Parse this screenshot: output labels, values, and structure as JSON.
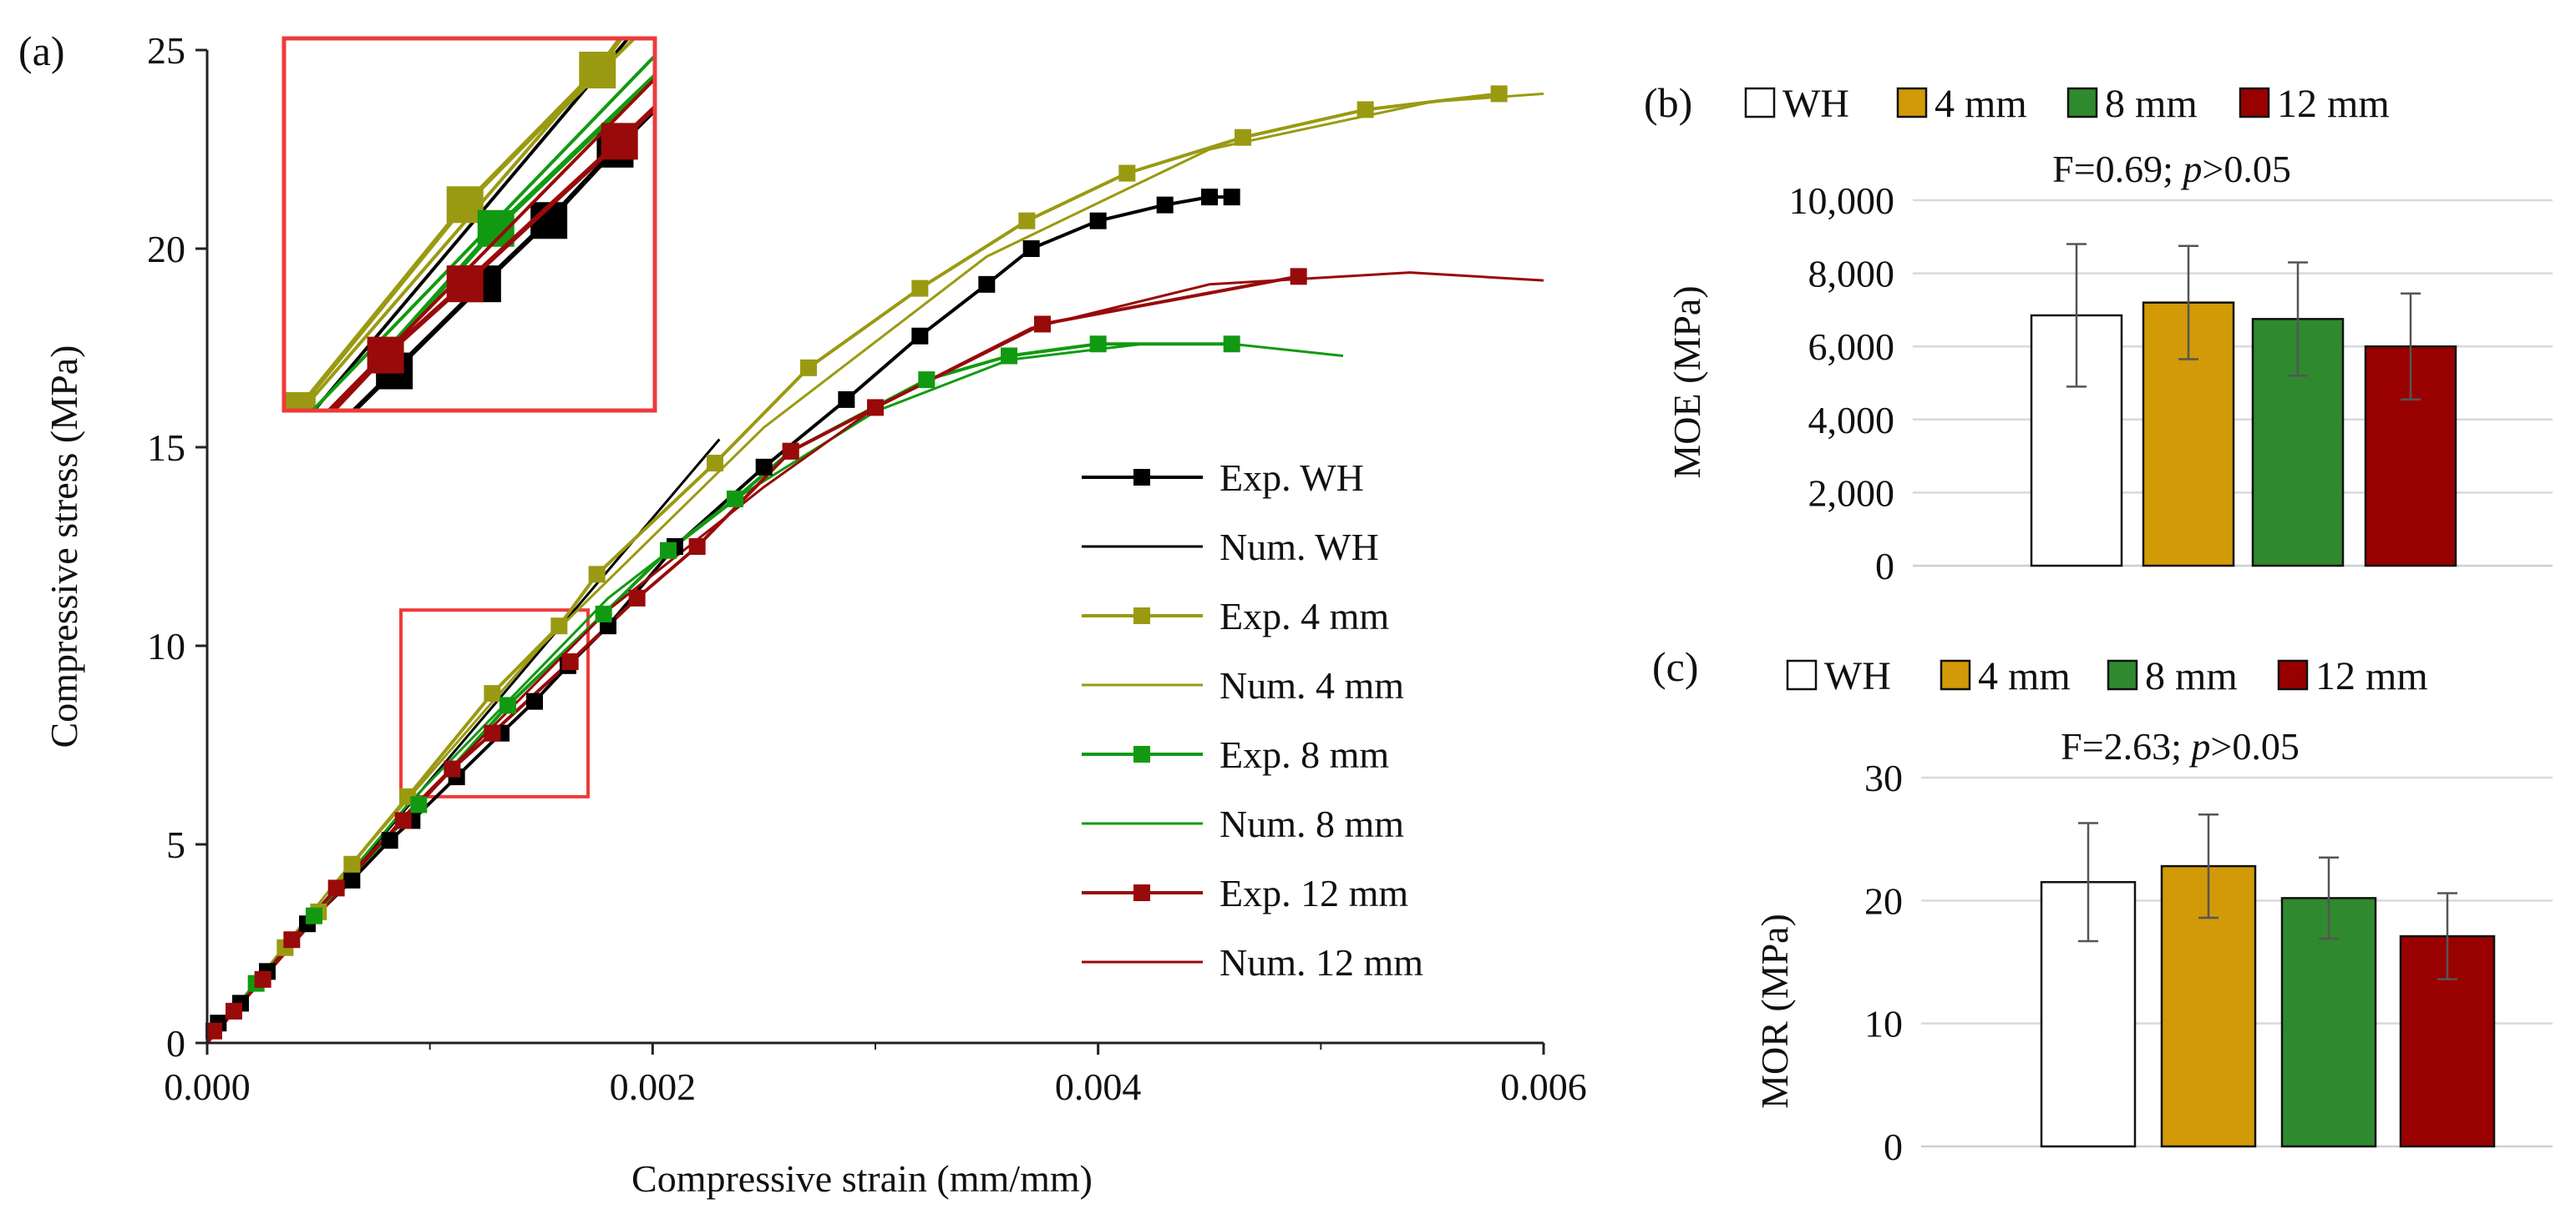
{
  "figure_labels": {
    "a": "(a)",
    "b": "(b)",
    "c": "(c)"
  },
  "colors": {
    "wh": "#000000",
    "wh_fill": "#ffffff",
    "mm4": "#9a9a12",
    "mm4_bar": "#d29a06",
    "mm8": "#119a11",
    "mm8_bar": "#2f8a2f",
    "mm12": "#990a0a",
    "mm12_bar": "#990000",
    "zoom_box": "#ee3b3b",
    "grid": "#d9d9d9",
    "axis": "#222222",
    "error": "#555555"
  },
  "chart_data": [
    {
      "id": "a",
      "type": "line",
      "title": "",
      "xlabel": "Compressive strain (mm/mm)",
      "ylabel": "Compressive stress (MPa)",
      "xlim": [
        0,
        0.006
      ],
      "ylim": [
        0,
        25
      ],
      "xticks": [
        0,
        0.002,
        0.004,
        0.006
      ],
      "xtick_labels": [
        "0.000",
        "0.002",
        "0.004",
        "0.006"
      ],
      "yticks": [
        0,
        5,
        10,
        15,
        20,
        25
      ],
      "ytick_labels": [
        "0",
        "5",
        "10",
        "15",
        "20",
        "25"
      ],
      "legend_position": "bottom-right",
      "zoom_region": {
        "x": [
          0.00087,
          0.00171
        ],
        "y": [
          6.2,
          10.9
        ]
      },
      "series": [
        {
          "name": "Exp. WH",
          "kind": "exp",
          "color_key": "wh",
          "x": [
            0,
            5e-05,
            0.00015,
            0.00027,
            0.00045,
            0.00065,
            0.00082,
            0.00092,
            0.00112,
            0.00132,
            0.00147,
            0.00162,
            0.0018,
            0.0021,
            0.0025,
            0.00287,
            0.0032,
            0.0035,
            0.0037,
            0.004,
            0.0043,
            0.0045,
            0.0046
          ],
          "y": [
            0,
            0.5,
            1.0,
            1.8,
            3.0,
            4.1,
            5.1,
            5.6,
            6.7,
            7.8,
            8.6,
            9.5,
            10.5,
            12.5,
            14.5,
            16.2,
            17.8,
            19.1,
            20.0,
            20.7,
            21.1,
            21.3,
            21.3
          ]
        },
        {
          "name": "Num. WH",
          "kind": "num",
          "color_key": "wh",
          "x": [
            0,
            0.0023
          ],
          "y": [
            0,
            15.2
          ]
        },
        {
          "name": "Exp. 4 mm",
          "kind": "exp",
          "color_key": "mm4",
          "x": [
            0,
            0.00035,
            0.0005,
            0.00065,
            0.0009,
            0.00128,
            0.00158,
            0.00175,
            0.00228,
            0.0027,
            0.0032,
            0.00368,
            0.00413,
            0.00465,
            0.0052,
            0.0058
          ],
          "y": [
            0,
            2.4,
            3.3,
            4.5,
            6.2,
            8.8,
            10.5,
            11.8,
            14.6,
            17.0,
            19.0,
            20.7,
            21.9,
            22.8,
            23.5,
            23.9
          ]
        },
        {
          "name": "Num. 4 mm",
          "kind": "num",
          "color_key": "mm4",
          "x": [
            0,
            0.0006,
            0.0015,
            0.0025,
            0.0035,
            0.0045,
            0.0055,
            0.006
          ],
          "y": [
            0,
            4.2,
            10.0,
            15.5,
            19.8,
            22.5,
            23.7,
            23.9
          ]
        },
        {
          "name": "Exp. 8 mm",
          "kind": "exp",
          "color_key": "mm8",
          "x": [
            0,
            0.00022,
            0.00048,
            0.00095,
            0.00135,
            0.00178,
            0.00207,
            0.00237,
            0.00262,
            0.00323,
            0.0036,
            0.004,
            0.0046
          ],
          "y": [
            0,
            1.5,
            3.2,
            6.0,
            8.5,
            10.8,
            12.4,
            13.7,
            14.9,
            16.7,
            17.3,
            17.6,
            17.6
          ]
        },
        {
          "name": "Num. 8 mm",
          "kind": "num",
          "color_key": "mm8",
          "x": [
            0,
            0.0009,
            0.0018,
            0.0024,
            0.003,
            0.0036,
            0.0042,
            0.0046,
            0.0051
          ],
          "y": [
            0,
            6.0,
            11.2,
            13.8,
            15.9,
            17.2,
            17.6,
            17.6,
            17.3
          ]
        },
        {
          "name": "Exp. 12 mm",
          "kind": "exp",
          "color_key": "mm12",
          "x": [
            0,
            3e-05,
            0.00012,
            0.00025,
            0.00038,
            0.00058,
            0.00088,
            0.0011,
            0.00128,
            0.00163,
            0.00193,
            0.0022,
            0.00262,
            0.003,
            0.00375,
            0.0049
          ],
          "y": [
            0,
            0.3,
            0.8,
            1.6,
            2.6,
            3.9,
            5.6,
            6.9,
            7.8,
            9.6,
            11.2,
            12.5,
            14.9,
            16.0,
            18.1,
            19.3
          ]
        },
        {
          "name": "Num. 12 mm",
          "kind": "num",
          "color_key": "mm12",
          "x": [
            0,
            0.0009,
            0.0018,
            0.0025,
            0.003,
            0.0037,
            0.0045,
            0.0054,
            0.006
          ],
          "y": [
            0,
            5.8,
            10.9,
            14.0,
            16.0,
            18.0,
            19.1,
            19.4,
            19.2
          ]
        }
      ]
    },
    {
      "id": "b",
      "type": "bar",
      "ylabel": "MOE (MPa)",
      "annotation_prefix": "F=0.69; ",
      "annotation_p": "p",
      "annotation_suffix": ">0.05",
      "ylim": [
        0,
        10000
      ],
      "yticks": [
        0,
        2000,
        4000,
        6000,
        8000,
        10000
      ],
      "ytick_labels": [
        "0",
        "2,000",
        "4,000",
        "6,000",
        "8,000",
        "10,000"
      ],
      "legend_position": "top",
      "categories": [
        "WH",
        "4 mm",
        "8 mm",
        "12 mm"
      ],
      "values": [
        6850,
        7200,
        6750,
        6000
      ],
      "errors": [
        1950,
        1550,
        1550,
        1450
      ],
      "color_keys": [
        "wh_fill",
        "mm4_bar",
        "mm8_bar",
        "mm12_bar"
      ]
    },
    {
      "id": "c",
      "type": "bar",
      "ylabel": "MOR (MPa)",
      "annotation_prefix": "F=2.63; ",
      "annotation_p": "p",
      "annotation_suffix": ">0.05",
      "ylim": [
        0,
        30
      ],
      "yticks": [
        0,
        10,
        20,
        30
      ],
      "ytick_labels": [
        "0",
        "10",
        "20",
        "30"
      ],
      "legend_position": "top",
      "categories": [
        "WH",
        "4 mm",
        "8 mm",
        "12 mm"
      ],
      "values": [
        21.5,
        22.8,
        20.2,
        17.1
      ],
      "errors": [
        4.8,
        4.2,
        3.3,
        3.5
      ],
      "color_keys": [
        "wh_fill",
        "mm4_bar",
        "mm8_bar",
        "mm12_bar"
      ]
    }
  ]
}
